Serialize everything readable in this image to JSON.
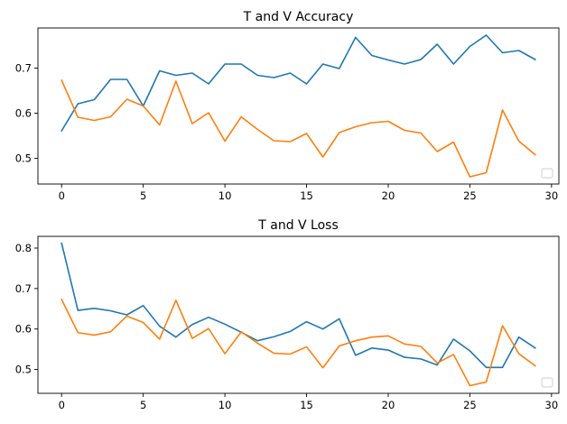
{
  "chart_data": [
    {
      "type": "line",
      "title": "T and V Accuracy",
      "xlabel": "",
      "ylabel": "",
      "xlim": [
        -1.45,
        30.45
      ],
      "ylim": [
        0.443,
        0.789
      ],
      "xticks": [
        0,
        5,
        10,
        15,
        20,
        25,
        30
      ],
      "yticks": [
        0.5,
        0.6,
        0.7
      ],
      "grid": false,
      "legend": "bottom-right (empty)",
      "series": [
        {
          "color": "#1f77b4",
          "x": [
            0,
            1,
            2,
            3,
            4,
            5,
            6,
            7,
            8,
            9,
            10,
            11,
            12,
            13,
            14,
            15,
            16,
            17,
            18,
            19,
            20,
            21,
            22,
            23,
            24,
            25,
            26,
            27,
            28,
            29
          ],
          "values": [
            0.561,
            0.621,
            0.63,
            0.675,
            0.675,
            0.616,
            0.694,
            0.684,
            0.689,
            0.665,
            0.709,
            0.709,
            0.684,
            0.679,
            0.689,
            0.665,
            0.709,
            0.699,
            0.768,
            0.728,
            0.718,
            0.709,
            0.719,
            0.753,
            0.709,
            0.748,
            0.773,
            0.734,
            0.739,
            0.719
          ]
        },
        {
          "color": "#ff7f0e",
          "x": [
            0,
            1,
            2,
            3,
            4,
            5,
            6,
            7,
            8,
            9,
            10,
            11,
            12,
            13,
            14,
            15,
            16,
            17,
            18,
            19,
            20,
            21,
            22,
            23,
            24,
            25,
            26,
            27,
            28,
            29
          ],
          "values": [
            0.673,
            0.591,
            0.584,
            0.592,
            0.631,
            0.616,
            0.574,
            0.671,
            0.577,
            0.601,
            0.538,
            0.592,
            0.564,
            0.539,
            0.537,
            0.555,
            0.503,
            0.557,
            0.57,
            0.579,
            0.582,
            0.562,
            0.556,
            0.515,
            0.536,
            0.459,
            0.468,
            0.607,
            0.538,
            0.508
          ]
        }
      ]
    },
    {
      "type": "line",
      "title": "T and V Loss",
      "xlabel": "",
      "ylabel": "",
      "xlim": [
        -1.45,
        30.45
      ],
      "ylim": [
        0.441,
        0.829
      ],
      "xticks": [
        0,
        5,
        10,
        15,
        20,
        25,
        30
      ],
      "yticks": [
        0.5,
        0.6,
        0.7,
        0.8
      ],
      "grid": false,
      "legend": "bottom-right (empty)",
      "series": [
        {
          "color": "#1f77b4",
          "x": [
            0,
            1,
            2,
            3,
            4,
            5,
            6,
            7,
            8,
            9,
            10,
            11,
            12,
            13,
            14,
            15,
            16,
            17,
            18,
            19,
            20,
            21,
            22,
            23,
            24,
            25,
            26,
            27,
            28,
            29
          ],
          "values": [
            0.812,
            0.646,
            0.651,
            0.645,
            0.635,
            0.658,
            0.607,
            0.58,
            0.611,
            0.629,
            0.612,
            0.592,
            0.571,
            0.581,
            0.594,
            0.618,
            0.6,
            0.625,
            0.535,
            0.553,
            0.548,
            0.53,
            0.526,
            0.511,
            0.575,
            0.546,
            0.505,
            0.505,
            0.58,
            0.553
          ]
        },
        {
          "color": "#ff7f0e",
          "x": [
            0,
            1,
            2,
            3,
            4,
            5,
            6,
            7,
            8,
            9,
            10,
            11,
            12,
            13,
            14,
            15,
            16,
            17,
            18,
            19,
            20,
            21,
            22,
            23,
            24,
            25,
            26,
            27,
            28,
            29
          ],
          "values": [
            0.673,
            0.591,
            0.585,
            0.593,
            0.632,
            0.616,
            0.575,
            0.671,
            0.577,
            0.601,
            0.539,
            0.593,
            0.565,
            0.54,
            0.538,
            0.556,
            0.504,
            0.558,
            0.571,
            0.58,
            0.583,
            0.563,
            0.557,
            0.516,
            0.537,
            0.46,
            0.469,
            0.608,
            0.539,
            0.509
          ]
        }
      ]
    }
  ]
}
